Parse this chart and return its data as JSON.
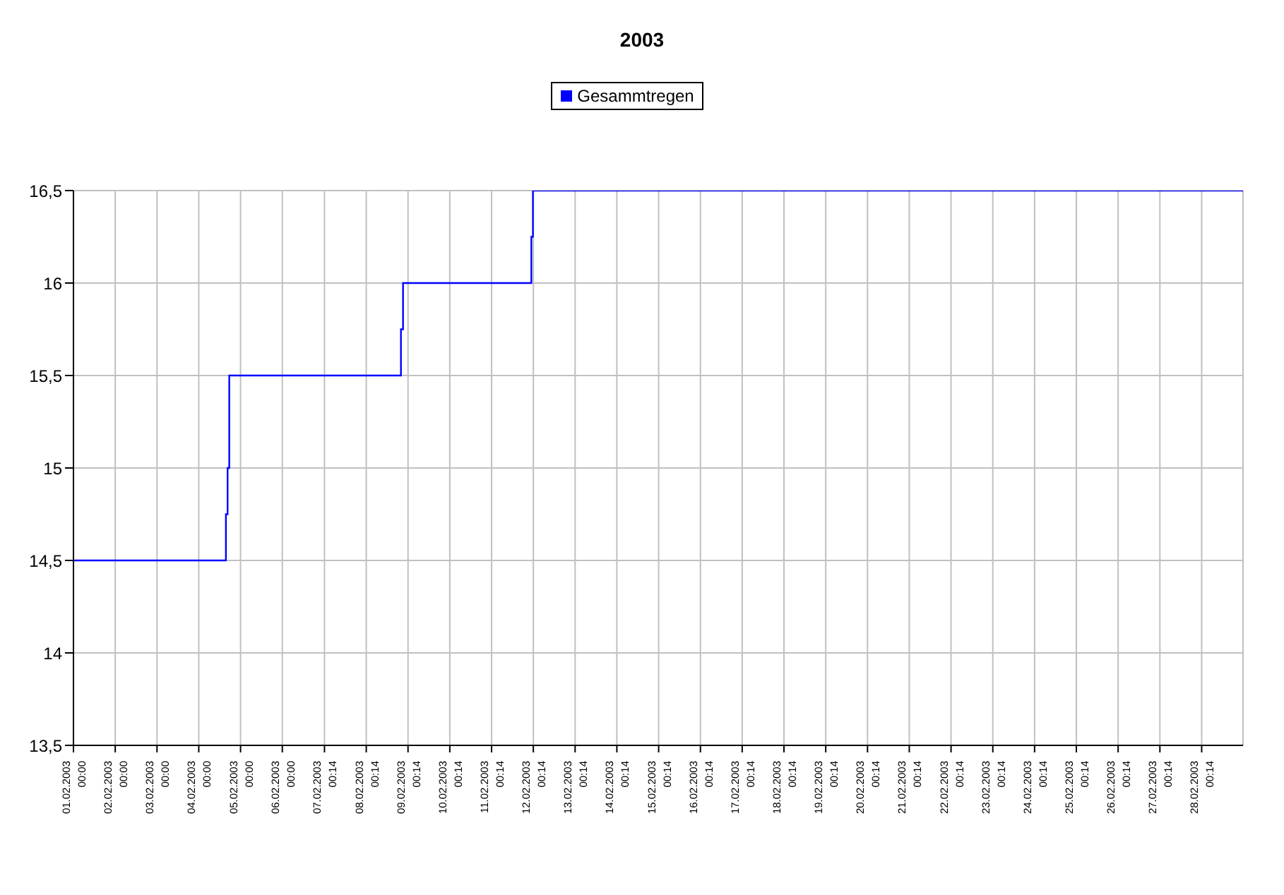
{
  "chart_data": {
    "type": "step",
    "title": "2003",
    "legend": "top",
    "grid": true,
    "series": [
      {
        "name": "Gesammtregen",
        "color": "#0000ff",
        "x": [
          "2003-02-01T00:00",
          "2003-02-04T15:36",
          "2003-02-04T16:34",
          "2003-02-04T17:31",
          "2003-02-08T20:10",
          "2003-02-08T21:22",
          "2003-02-11T23:05",
          "2003-02-12T00:00",
          "2003-03-01T00:00"
        ],
        "values": [
          14.5,
          14.75,
          15,
          15.5,
          15.75,
          16,
          16.25,
          16.5,
          16.5
        ]
      }
    ],
    "xlim": [
      "2003-02-01T00:00",
      "2003-03-01T00:00"
    ],
    "xticks": [
      {
        "value": "2003-02-01T00:00",
        "label": "01.02.2003 00:00"
      },
      {
        "value": "2003-02-02T00:00",
        "label": "02.02.2003 00:00"
      },
      {
        "value": "2003-02-03T00:00",
        "label": "03.02.2003 00:00"
      },
      {
        "value": "2003-02-04T00:00",
        "label": "04.02.2003 00:00"
      },
      {
        "value": "2003-02-05T00:00",
        "label": "05.02.2003 00:00"
      },
      {
        "value": "2003-02-06T00:00",
        "label": "06.02.2003 00:00"
      },
      {
        "value": "2003-02-07T00:14",
        "label": "07.02.2003 00:14"
      },
      {
        "value": "2003-02-08T00:14",
        "label": "08.02.2003 00:14"
      },
      {
        "value": "2003-02-09T00:14",
        "label": "09.02.2003 00:14"
      },
      {
        "value": "2003-02-10T00:14",
        "label": "10.02.2003 00:14"
      },
      {
        "value": "2003-02-11T00:14",
        "label": "11.02.2003 00:14"
      },
      {
        "value": "2003-02-12T00:14",
        "label": "12.02.2003 00:14"
      },
      {
        "value": "2003-02-13T00:14",
        "label": "13.02.2003 00:14"
      },
      {
        "value": "2003-02-14T00:14",
        "label": "14.02.2003 00:14"
      },
      {
        "value": "2003-02-15T00:14",
        "label": "15.02.2003 00:14"
      },
      {
        "value": "2003-02-16T00:14",
        "label": "16.02.2003 00:14"
      },
      {
        "value": "2003-02-17T00:14",
        "label": "17.02.2003 00:14"
      },
      {
        "value": "2003-02-18T00:14",
        "label": "18.02.2003 00:14"
      },
      {
        "value": "2003-02-19T00:14",
        "label": "19.02.2003 00:14"
      },
      {
        "value": "2003-02-20T00:14",
        "label": "20.02.2003 00:14"
      },
      {
        "value": "2003-02-21T00:14",
        "label": "21.02.2003 00:14"
      },
      {
        "value": "2003-02-22T00:14",
        "label": "22.02.2003 00:14"
      },
      {
        "value": "2003-02-23T00:14",
        "label": "23.02.2003 00:14"
      },
      {
        "value": "2003-02-24T00:14",
        "label": "24.02.2003 00:14"
      },
      {
        "value": "2003-02-25T00:14",
        "label": "25.02.2003 00:14"
      },
      {
        "value": "2003-02-26T00:14",
        "label": "26.02.2003 00:14"
      },
      {
        "value": "2003-02-27T00:14",
        "label": "27.02.2003 00:14"
      },
      {
        "value": "2003-02-28T00:14",
        "label": "28.02.2003 00:14"
      }
    ],
    "ylim": [
      13.5,
      16.5
    ],
    "yticks": [
      {
        "value": 13.5,
        "label": "13,5"
      },
      {
        "value": 14,
        "label": "14"
      },
      {
        "value": 14.5,
        "label": "14,5"
      },
      {
        "value": 15,
        "label": "15"
      },
      {
        "value": 15.5,
        "label": "15,5"
      },
      {
        "value": 16,
        "label": "16"
      },
      {
        "value": 16.5,
        "label": "16,5"
      }
    ]
  }
}
